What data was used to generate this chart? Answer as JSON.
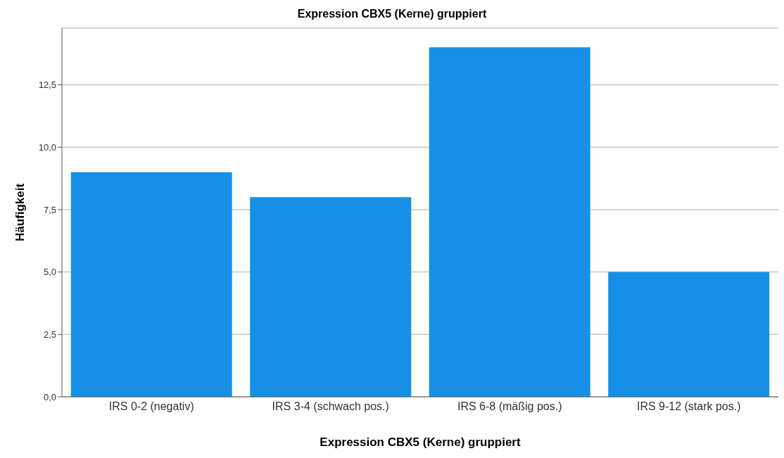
{
  "chart_data": {
    "type": "bar",
    "title": "Expression CBX5 (Kerne) gruppiert",
    "xlabel": "Expression CBX5 (Kerne) gruppiert",
    "ylabel": "Häufigkeit",
    "categories": [
      "IRS 0-2 (negativ)",
      "IRS 3-4 (schwach pos.)",
      "IRS 6-8 (mäßig pos.)",
      "IRS 9-12 (stark pos.)"
    ],
    "values": [
      9,
      8,
      14,
      5
    ],
    "color": "#1590e6",
    "ylim": [
      0,
      14.77
    ],
    "yticks": [
      {
        "value": 0,
        "label": "0,0"
      },
      {
        "value": 2.5,
        "label": "2,5"
      },
      {
        "value": 5,
        "label": "5,0"
      },
      {
        "value": 7.5,
        "label": "7,5"
      },
      {
        "value": 10,
        "label": "10,0"
      },
      {
        "value": 12.5,
        "label": "12,5"
      }
    ],
    "grid": "y"
  }
}
